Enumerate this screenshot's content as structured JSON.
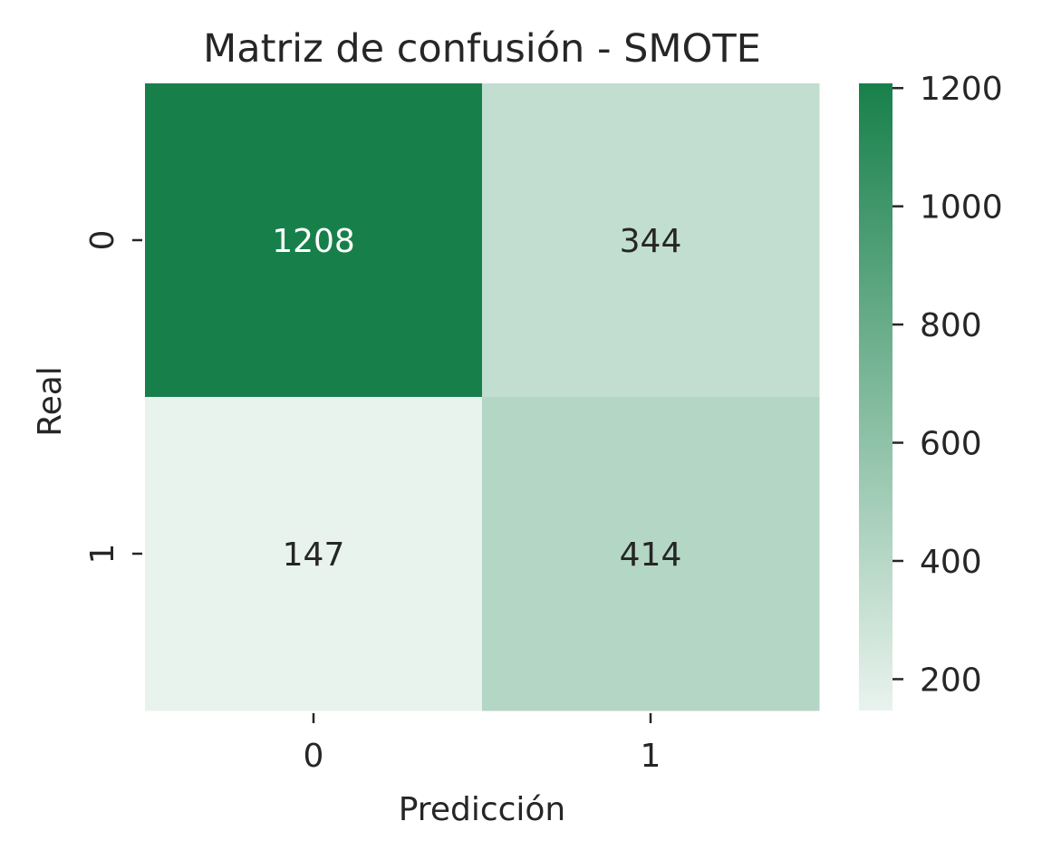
{
  "chart_data": {
    "type": "heatmap",
    "title": "Matriz de confusión - SMOTE",
    "xlabel": "Predicción",
    "ylabel": "Real",
    "x_categories": [
      "0",
      "1"
    ],
    "y_categories": [
      "0",
      "1"
    ],
    "values": [
      [
        1208,
        344
      ],
      [
        147,
        414
      ]
    ],
    "colorbar": {
      "ticks": [
        200,
        400,
        600,
        800,
        1000,
        1200
      ],
      "min": 147,
      "max": 1208
    },
    "colors": {
      "low": "#e9f3ee",
      "high": "#17804a",
      "dark_text": "#262626",
      "light_text": "#ffffff"
    },
    "grid": false,
    "legend": "colorbar-right"
  }
}
